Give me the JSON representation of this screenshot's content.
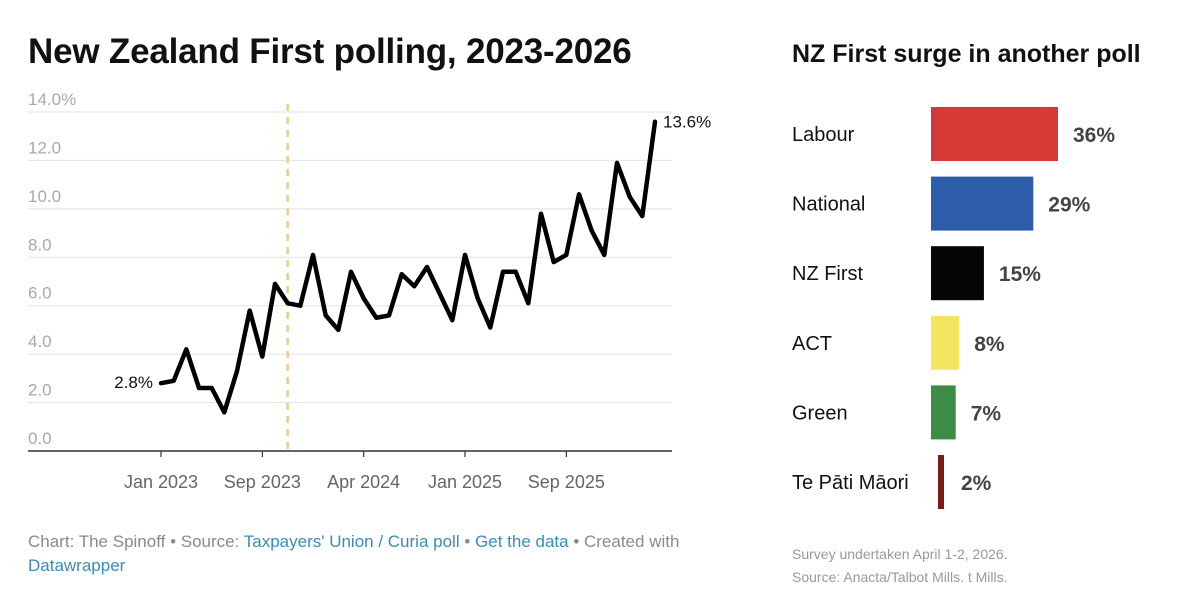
{
  "chart_data": [
    {
      "type": "line",
      "title": "New Zealand First polling, 2023-2026",
      "ylim": [
        0,
        14
      ],
      "y_ticks": [
        "0.0",
        "2.0",
        "4.0",
        "6.0",
        "8.0",
        "10.0",
        "12.0",
        "14.0%"
      ],
      "x_ticks": [
        "Jan 2023",
        "Sep 2023",
        "Apr 2024",
        "Jan 2025",
        "Sep 2025"
      ],
      "x_tick_index": [
        0,
        8,
        16,
        24,
        32
      ],
      "reference_line_index": 10,
      "grid": true,
      "series": [
        {
          "values": [
            2.8,
            2.9,
            4.2,
            2.6,
            2.6,
            1.6,
            3.3,
            5.8,
            3.9,
            6.9,
            6.1,
            6.0,
            8.1,
            5.6,
            5.0,
            7.4,
            6.3,
            5.5,
            5.6,
            7.3,
            6.8,
            7.6,
            6.5,
            5.4,
            8.1,
            6.3,
            5.1,
            7.4,
            7.4,
            6.1,
            9.8,
            7.8,
            8.1,
            10.6,
            9.1,
            8.1,
            11.9,
            10.5,
            9.7,
            13.6
          ]
        }
      ],
      "annotations": [
        {
          "label": "2.8%",
          "index": 0
        },
        {
          "label": "13.6%",
          "index": 39
        }
      ],
      "credit": {
        "prefix": "Chart: The Spinoff • Source: ",
        "source_link": "Taxpayers' Union / Curia poll",
        "sep": " • ",
        "data_link": "Get the data",
        "created": " • Created with ",
        "tool_link": "Datawrapper"
      }
    },
    {
      "type": "bar",
      "title": "NZ First surge in another poll",
      "categories": [
        "Labour",
        "National",
        "NZ First",
        "ACT",
        "Green",
        "Te Pāti Māori"
      ],
      "values": [
        36,
        29,
        15,
        8,
        7,
        2
      ],
      "value_labels": [
        "36%",
        "29%",
        "15%",
        "8%",
        "7%",
        "2%"
      ],
      "colors": [
        "#d63a37",
        "#2d5ca8",
        "#050505",
        "#f5e45e",
        "#3d8b44",
        "#7a1a14"
      ],
      "notes": [
        "Survey undertaken April 1-2, 2026.",
        "Source: Anacta/Talbot Mills. t Mills."
      ]
    }
  ]
}
